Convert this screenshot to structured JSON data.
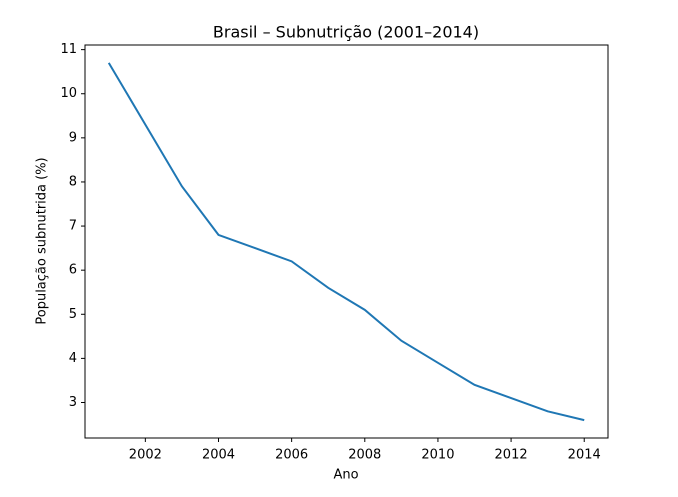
{
  "chart_data": {
    "type": "line",
    "title": "Brasil – Subnutrição (2001–2014)",
    "x_label": "Ano",
    "y_label": "População subnutrida (%)",
    "x": [
      2001,
      2002,
      2003,
      2004,
      2005,
      2006,
      2007,
      2008,
      2009,
      2010,
      2011,
      2012,
      2013,
      2014
    ],
    "values": [
      10.7,
      9.3,
      7.9,
      6.8,
      6.5,
      6.2,
      5.6,
      5.1,
      4.4,
      3.9,
      3.4,
      3.1,
      2.8,
      2.6
    ],
    "color": "#1f77b4",
    "xlim": [
      2000.35,
      2014.65
    ],
    "xticks": [
      2002,
      2004,
      2006,
      2008,
      2010,
      2012,
      2014
    ],
    "ylim": [
      2.195,
      11.105
    ],
    "yticks": [
      3,
      4,
      5,
      6,
      7,
      8,
      9,
      10,
      11
    ]
  }
}
